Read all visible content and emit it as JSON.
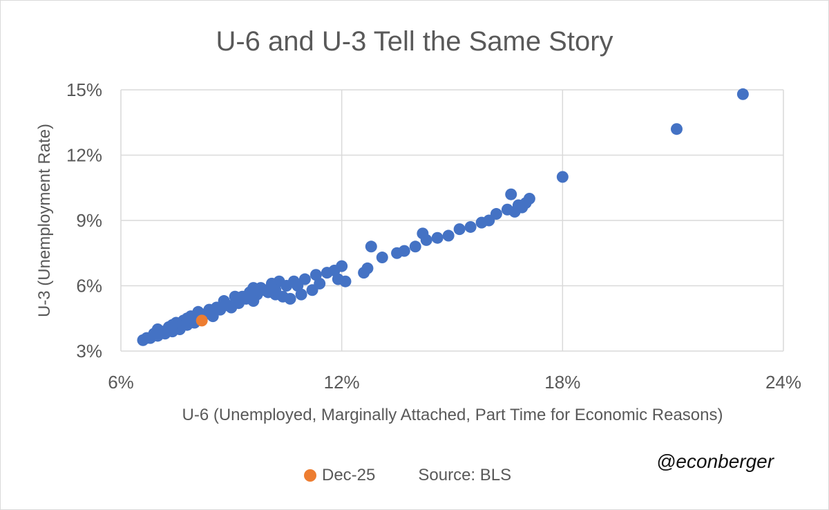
{
  "chart_data": {
    "type": "scatter",
    "title": "U-6 and U-3 Tell the Same Story",
    "xlabel": "U-6 (Unemployed, Marginally Attached, Part Time for Economic Reasons)",
    "ylabel": "U-3 (Unemployment Rate)",
    "xlim": [
      6,
      24
    ],
    "ylim": [
      3,
      15
    ],
    "x_ticks": [
      "6%",
      "12%",
      "18%",
      "24%"
    ],
    "y_ticks": [
      "15%",
      "12%",
      "9%",
      "6%",
      "3%"
    ],
    "grid": true,
    "legend": "bottom",
    "colors": {
      "main": "#4472c4",
      "highlight": "#ed7d31",
      "grid": "#d9d9d9"
    },
    "series": [
      {
        "color": "#4472c4",
        "points": [
          [
            22.9,
            14.8
          ],
          [
            21.1,
            13.2
          ],
          [
            18.0,
            11.0
          ],
          [
            16.6,
            10.2
          ],
          [
            17.1,
            10.0
          ],
          [
            17.0,
            9.8
          ],
          [
            16.8,
            9.7
          ],
          [
            16.5,
            9.5
          ],
          [
            16.9,
            9.6
          ],
          [
            16.7,
            9.4
          ],
          [
            16.2,
            9.3
          ],
          [
            16.0,
            9.0
          ],
          [
            15.8,
            8.9
          ],
          [
            15.5,
            8.7
          ],
          [
            15.2,
            8.6
          ],
          [
            14.9,
            8.3
          ],
          [
            14.6,
            8.2
          ],
          [
            14.3,
            8.1
          ],
          [
            14.0,
            7.8
          ],
          [
            13.7,
            7.6
          ],
          [
            14.2,
            8.4
          ],
          [
            13.5,
            7.5
          ],
          [
            13.1,
            7.3
          ],
          [
            12.8,
            7.8
          ],
          [
            12.7,
            6.8
          ],
          [
            12.6,
            6.6
          ],
          [
            12.1,
            6.2
          ],
          [
            11.9,
            6.3
          ],
          [
            11.8,
            6.7
          ],
          [
            12.0,
            6.9
          ],
          [
            11.6,
            6.6
          ],
          [
            11.3,
            6.5
          ],
          [
            11.0,
            6.3
          ],
          [
            10.8,
            6.0
          ],
          [
            10.7,
            6.2
          ],
          [
            10.5,
            6.0
          ],
          [
            10.2,
            5.6
          ],
          [
            10.1,
            6.1
          ],
          [
            10.3,
            6.2
          ],
          [
            10.2,
            5.8
          ],
          [
            10.4,
            5.5
          ],
          [
            9.9,
            5.8
          ],
          [
            9.8,
            5.9
          ],
          [
            9.7,
            5.6
          ],
          [
            9.6,
            5.3
          ],
          [
            9.5,
            5.7
          ],
          [
            9.3,
            5.5
          ],
          [
            9.2,
            5.2
          ],
          [
            9.0,
            5.0
          ],
          [
            9.4,
            5.4
          ],
          [
            8.9,
            5.1
          ],
          [
            8.7,
            4.9
          ],
          [
            8.5,
            4.6
          ],
          [
            8.3,
            4.7
          ],
          [
            8.6,
            5.0
          ],
          [
            8.2,
            4.5
          ],
          [
            8.0,
            4.3
          ],
          [
            7.9,
            4.6
          ],
          [
            7.8,
            4.2
          ],
          [
            7.7,
            4.4
          ],
          [
            7.6,
            4.0
          ],
          [
            7.5,
            4.3
          ],
          [
            7.4,
            3.9
          ],
          [
            7.3,
            4.1
          ],
          [
            7.2,
            3.8
          ],
          [
            7.1,
            3.9
          ],
          [
            7.0,
            3.7
          ],
          [
            6.9,
            3.8
          ],
          [
            6.8,
            3.6
          ],
          [
            6.6,
            3.5
          ],
          [
            6.7,
            3.6
          ],
          [
            7.0,
            4.0
          ],
          [
            7.4,
            4.2
          ],
          [
            7.8,
            4.5
          ],
          [
            8.1,
            4.8
          ],
          [
            8.4,
            4.9
          ],
          [
            8.8,
            5.3
          ],
          [
            9.1,
            5.5
          ],
          [
            9.6,
            5.9
          ],
          [
            10.0,
            5.7
          ],
          [
            10.6,
            5.4
          ],
          [
            11.2,
            5.8
          ],
          [
            11.4,
            6.1
          ],
          [
            10.9,
            5.6
          ]
        ]
      },
      {
        "name": "Dec-25",
        "color": "#ed7d31",
        "points": [
          [
            8.2,
            4.4
          ]
        ]
      }
    ],
    "source_note": "Source: BLS",
    "handle": "@econberger"
  }
}
